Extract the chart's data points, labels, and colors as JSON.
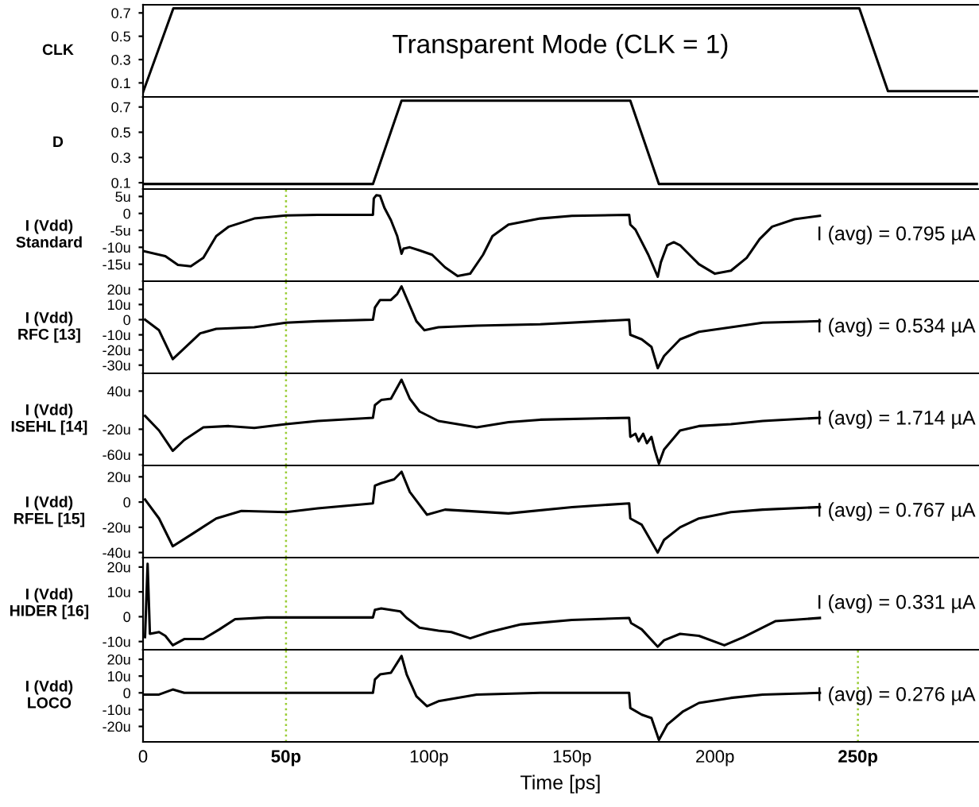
{
  "chart_data": [
    {
      "type": "line",
      "title": "Transparent Mode (CLK = 1)",
      "ylabel": "CLK",
      "color": "#000000",
      "x": [
        0,
        10.6,
        250.5,
        260.5,
        292
      ],
      "values": [
        0.02,
        0.74,
        0.74,
        0.03,
        0.03
      ],
      "xlim": [
        0,
        292
      ],
      "ylim": [
        -0.02,
        0.77
      ],
      "yticks": [
        0.1,
        0.3,
        0.5,
        0.7
      ],
      "tick_labels": "y"
    },
    {
      "type": "line",
      "ylabel": "D",
      "color": "#000000",
      "x": [
        0,
        80.4,
        90.4,
        170.4,
        180.4,
        292
      ],
      "values": [
        0.09,
        0.09,
        0.75,
        0.75,
        0.09,
        0.09
      ],
      "xlim": [
        0,
        292
      ],
      "ylim": [
        0.05,
        0.78
      ],
      "yticks": [
        0.1,
        0.3,
        0.5,
        0.7
      ],
      "tick_labels": "y"
    },
    {
      "type": "line",
      "ylabel": "I (Vdd)\nStandard",
      "annotations": [
        "I (avg) = 0.795 µA"
      ],
      "color": "#000000",
      "x": [
        0,
        7.8,
        12.2,
        16.7,
        21.1,
        25.6,
        30,
        38.9,
        50,
        61.1,
        80.4,
        80.7,
        81.6,
        82.9,
        84.4,
        86.7,
        88.9,
        90.4,
        91.1,
        93.3,
        96.7,
        101.1,
        105.6,
        110,
        114.4,
        118.9,
        122.2,
        127.8,
        138.9,
        150,
        170,
        170.4,
        172.2,
        176.7,
        180,
        181.1,
        183.3,
        185.6,
        187.8,
        191.1,
        194.4,
        200,
        205.6,
        211.1,
        215.6,
        220,
        227.8,
        236.7
      ],
      "values": [
        -11.1,
        -12.6,
        -15.2,
        -15.6,
        -13.1,
        -6.7,
        -3.9,
        -1.5,
        -0.6,
        -0.4,
        -0.4,
        4.4,
        5.4,
        5.2,
        1.7,
        -2.0,
        -6.7,
        -11.9,
        -10.4,
        -10.0,
        -10.9,
        -12.2,
        -15.9,
        -18.5,
        -17.8,
        -12.2,
        -6.7,
        -3.3,
        -1.5,
        -0.7,
        -0.4,
        -3.3,
        -4.8,
        -12.2,
        -18.7,
        -14.4,
        -9.4,
        -8.5,
        -9.4,
        -12.2,
        -15.0,
        -17.8,
        -16.9,
        -13.1,
        -7.6,
        -3.9,
        -1.7,
        -0.7
      ],
      "xlim": [
        0,
        292
      ],
      "ylim": [
        -20,
        7.2
      ],
      "yticks": [
        {
          "value": 5,
          "label": "5u"
        },
        0,
        {
          "value": -5,
          "label": "-5u"
        },
        {
          "value": -10,
          "label": "-10u"
        },
        {
          "value": -15,
          "label": "-15u"
        }
      ],
      "tick_labels": "y",
      "ref_lines": [
        {
          "axis": "x",
          "value": 50,
          "color": "#99cc33",
          "line_style": "dotted"
        }
      ]
    },
    {
      "type": "line",
      "ylabel": "I (Vdd)\nRFC [13]",
      "annotations": [
        "I (avg) = 0.534 µA"
      ],
      "color": "#000000",
      "x": [
        0.7,
        5.6,
        10.4,
        14.4,
        20,
        25.6,
        38.9,
        50,
        61.1,
        80.4,
        81.1,
        82.9,
        86.7,
        88.9,
        90.4,
        92.2,
        95.6,
        98.4,
        103.3,
        116.7,
        138.9,
        170,
        170.4,
        174.4,
        177.8,
        180,
        182.2,
        187.8,
        194.4,
        205.6,
        216.7,
        236.7
      ],
      "values": [
        0,
        -7,
        -26,
        -19,
        -9,
        -6,
        -5,
        -2,
        -1,
        0,
        8,
        13,
        13,
        17,
        22,
        14,
        -1,
        -7,
        -5,
        -4,
        -3,
        0,
        -10,
        -13,
        -18,
        -32,
        -24,
        -13,
        -8,
        -5,
        -2,
        -1
      ],
      "xlim": [
        0,
        292
      ],
      "ylim": [
        -35.4,
        25.4
      ],
      "yticks": [
        {
          "value": 20,
          "label": "20u"
        },
        {
          "value": 10,
          "label": "10u"
        },
        0,
        {
          "value": -10,
          "label": "-10u"
        },
        {
          "value": -20,
          "label": "-20u"
        },
        {
          "value": -30,
          "label": "-30u"
        }
      ],
      "tick_labels": "y",
      "ref_lines": [
        {
          "axis": "x",
          "value": 50,
          "color": "#99cc33",
          "line_style": "dotted"
        }
      ]
    },
    {
      "type": "line",
      "ylabel": "I (Vdd)\nISEHL [14]",
      "annotations": [
        "I (avg) = 1.714 µA"
      ],
      "color": "#000000",
      "x": [
        0.7,
        5.6,
        10.4,
        14.4,
        21.1,
        30,
        38.9,
        50,
        61.1,
        80.4,
        81.1,
        83.3,
        86.7,
        90.4,
        93.3,
        96.7,
        103.3,
        116.7,
        127.8,
        138.9,
        170,
        170.4,
        172.2,
        173.3,
        174.9,
        176.2,
        177.8,
        178.9,
        180.4,
        182.2,
        187.8,
        194.4,
        205.6,
        216.7,
        236.7
      ],
      "values": [
        1,
        -22,
        -54,
        -37,
        -17,
        -15,
        -18,
        -12,
        -7,
        -2,
        18,
        26,
        28,
        58,
        28,
        8,
        -7,
        -17,
        -9,
        -5,
        -2,
        -32,
        -27,
        -39,
        -27,
        -42,
        -32,
        -52,
        -74,
        -52,
        -22,
        -15,
        -12,
        -7,
        -2
      ],
      "xlim": [
        0,
        292
      ],
      "ylim": [
        -77,
        68
      ],
      "yticks": [
        {
          "value": 40,
          "label": "40u"
        },
        {
          "value": -20,
          "label": "-20u"
        },
        {
          "value": -60,
          "label": "-60u"
        }
      ],
      "tick_labels": "y",
      "ref_lines": [
        {
          "axis": "x",
          "value": 50,
          "color": "#99cc33",
          "line_style": "dotted"
        }
      ]
    },
    {
      "type": "line",
      "ylabel": "I (Vdd)\nRFEL [15]",
      "annotations": [
        "I (avg) = 0.767 µA"
      ],
      "color": "#000000",
      "x": [
        0.7,
        5.6,
        10.4,
        16.7,
        25.6,
        34.4,
        50,
        61.1,
        80.4,
        81.1,
        83.3,
        87.8,
        90.4,
        93.3,
        99.3,
        105.6,
        127.8,
        150,
        170,
        170.4,
        174.4,
        180,
        182.2,
        187.8,
        194.4,
        205.6,
        216.7,
        236.7
      ],
      "values": [
        2,
        -13,
        -35,
        -26,
        -13,
        -7,
        -8,
        -5,
        -1,
        13,
        15,
        18,
        24,
        8,
        -10,
        -6,
        -9,
        -4,
        -1,
        -13,
        -18,
        -40,
        -30,
        -20,
        -13,
        -8,
        -6,
        -4
      ],
      "xlim": [
        0,
        292
      ],
      "ylim": [
        -44,
        29
      ],
      "yticks": [
        {
          "value": 20,
          "label": "20u"
        },
        0,
        {
          "value": -20,
          "label": "-20u"
        },
        {
          "value": -40,
          "label": "-40u"
        }
      ],
      "tick_labels": "y",
      "ref_lines": [
        {
          "axis": "x",
          "value": 50,
          "color": "#99cc33",
          "line_style": "dotted"
        }
      ]
    },
    {
      "type": "line",
      "ylabel": "I (Vdd)\nHIDER [16]",
      "annotations": [
        "I (avg) = 0.331 µA"
      ],
      "color": "#000000",
      "x": [
        0.7,
        1.6,
        2.4,
        5.6,
        7.8,
        10.4,
        14.4,
        21.1,
        26.7,
        32.2,
        43.3,
        80.4,
        81.1,
        83.3,
        90,
        92.2,
        96.7,
        103.3,
        107.8,
        114.4,
        121.1,
        132.2,
        150,
        170,
        170.7,
        174.4,
        180,
        182.2,
        187.8,
        194.4,
        203.3,
        210,
        221.1,
        236.7
      ],
      "values": [
        -8.2,
        21.3,
        -6.9,
        -6.2,
        -7.7,
        -11.5,
        -9.0,
        -9.0,
        -5.1,
        -1.0,
        -0.3,
        -0.3,
        2.8,
        3.3,
        2.1,
        -0.5,
        -4.4,
        -5.6,
        -6.2,
        -8.7,
        -6.2,
        -3.1,
        -1.3,
        -0.5,
        -2.6,
        -5.1,
        -12.1,
        -9.5,
        -6.9,
        -7.7,
        -11.5,
        -8.2,
        -1.8,
        -0.5
      ],
      "xlim": [
        0,
        292
      ],
      "ylim": [
        -13.3,
        23.8
      ],
      "yticks": [
        {
          "value": 20,
          "label": "20u"
        },
        {
          "value": 10,
          "label": "10u"
        },
        0,
        {
          "value": -10,
          "label": "-10u"
        }
      ],
      "tick_labels": "y",
      "ref_lines": [
        {
          "axis": "x",
          "value": 50,
          "color": "#99cc33",
          "line_style": "dotted"
        }
      ]
    },
    {
      "type": "line",
      "ylabel": "I (Vdd)\nLOCO",
      "annotations": [
        "I (avg) = 0.276 µA"
      ],
      "xlabel": "Time [ps]",
      "color": "#000000",
      "x": [
        0.7,
        5.6,
        10.4,
        14.4,
        38.9,
        80.4,
        81.1,
        82.9,
        86.7,
        90.4,
        92.2,
        95.6,
        99.3,
        103.3,
        116.7,
        138.9,
        170,
        170.4,
        174.4,
        177.8,
        180.4,
        183.3,
        188.9,
        194.4,
        205.6,
        216.7,
        236.7
      ],
      "values": [
        -1,
        -1,
        2,
        0,
        0,
        0,
        8,
        11,
        12,
        22,
        11,
        -2,
        -8,
        -5,
        -1,
        0,
        0,
        -9,
        -13,
        -15,
        -28,
        -19,
        -11,
        -6,
        -3,
        -1,
        0
      ],
      "xlim": [
        0,
        292
      ],
      "ylim": [
        -29.2,
        25.7
      ],
      "xticks": [
        0,
        {
          "value": 50,
          "label": "50p"
        },
        {
          "value": 100,
          "label": "100p"
        },
        {
          "value": 150,
          "label": "150p"
        },
        {
          "value": 200,
          "label": "200p"
        },
        {
          "value": 250,
          "label": "250p"
        }
      ],
      "yticks": [
        {
          "value": 20,
          "label": "20u"
        },
        {
          "value": 10,
          "label": "10u"
        },
        0,
        {
          "value": -10,
          "label": "-10u"
        },
        {
          "value": -20,
          "label": "-20u"
        }
      ],
      "ref_lines": [
        {
          "axis": "x",
          "value": 50,
          "color": "#99cc33",
          "line_style": "dotted"
        },
        {
          "axis": "x",
          "value": 250,
          "color": "#99cc33",
          "line_style": "dotted"
        }
      ]
    }
  ]
}
